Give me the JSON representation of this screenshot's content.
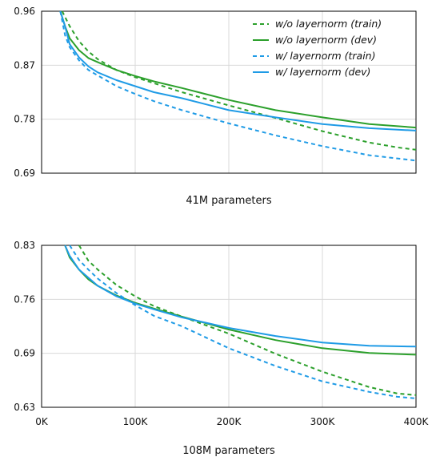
{
  "colors": {
    "green": "#2ca02c",
    "blue": "#1f9be6"
  },
  "legend": [
    {
      "label": "w/o layernorm (train)",
      "color_key": "green",
      "dashed": true
    },
    {
      "label": "w/o layernorm (dev)",
      "color_key": "green",
      "dashed": false
    },
    {
      "label": "w/ layernorm (train)",
      "color_key": "blue",
      "dashed": true
    },
    {
      "label": "w/ layernorm (dev)",
      "color_key": "blue",
      "dashed": false
    }
  ],
  "chart_data": [
    {
      "type": "line",
      "title": "41M parameters",
      "xlim": [
        0,
        400000
      ],
      "ylim": [
        0.69,
        0.96
      ],
      "yticks": [
        "0.96",
        "0.87",
        "0.78",
        "0.69"
      ],
      "grid": true,
      "legend_position": "top-right",
      "series": [
        {
          "name": "w/o layernorm (train)",
          "color_key": "green",
          "dashed": true,
          "x": [
            22000,
            30000,
            40000,
            50000,
            60000,
            80000,
            100000,
            120000,
            150000,
            200000,
            250000,
            300000,
            350000,
            380000,
            400000
          ],
          "y": [
            0.96,
            0.935,
            0.91,
            0.893,
            0.88,
            0.862,
            0.85,
            0.84,
            0.825,
            0.803,
            0.782,
            0.76,
            0.741,
            0.733,
            0.729
          ]
        },
        {
          "name": "w/o layernorm (dev)",
          "color_key": "green",
          "dashed": false,
          "x": [
            20000,
            25000,
            30000,
            40000,
            50000,
            60000,
            80000,
            100000,
            120000,
            150000,
            200000,
            250000,
            300000,
            350000,
            400000
          ],
          "y": [
            0.96,
            0.935,
            0.915,
            0.895,
            0.882,
            0.875,
            0.862,
            0.852,
            0.843,
            0.832,
            0.812,
            0.795,
            0.783,
            0.772,
            0.766
          ]
        },
        {
          "name": "w/ layernorm (train)",
          "color_key": "blue",
          "dashed": true,
          "x": [
            20000,
            25000,
            30000,
            40000,
            50000,
            60000,
            80000,
            100000,
            120000,
            150000,
            200000,
            250000,
            300000,
            350000,
            400000
          ],
          "y": [
            0.96,
            0.92,
            0.9,
            0.878,
            0.862,
            0.853,
            0.835,
            0.822,
            0.81,
            0.795,
            0.773,
            0.753,
            0.735,
            0.72,
            0.711
          ]
        },
        {
          "name": "w/ layernorm (dev)",
          "color_key": "blue",
          "dashed": false,
          "x": [
            20000,
            25000,
            30000,
            40000,
            50000,
            60000,
            80000,
            100000,
            120000,
            150000,
            200000,
            250000,
            300000,
            350000,
            400000
          ],
          "y": [
            0.96,
            0.935,
            0.905,
            0.883,
            0.868,
            0.858,
            0.845,
            0.835,
            0.825,
            0.815,
            0.795,
            0.783,
            0.772,
            0.765,
            0.761
          ]
        }
      ]
    },
    {
      "type": "line",
      "title": "108M parameters",
      "xlim": [
        0,
        400000
      ],
      "ylim": [
        0.63,
        0.83
      ],
      "xticks": [
        "0K",
        "100K",
        "200K",
        "300K",
        "400K"
      ],
      "yticks": [
        "0.83",
        "0.76",
        "0.69",
        "0.63"
      ],
      "grid": true,
      "series": [
        {
          "name": "w/o layernorm (train)",
          "color_key": "green",
          "dashed": true,
          "x": [
            40000,
            50000,
            60000,
            80000,
            100000,
            120000,
            150000,
            200000,
            250000,
            300000,
            350000,
            380000,
            400000
          ],
          "y": [
            0.83,
            0.811,
            0.8,
            0.781,
            0.767,
            0.755,
            0.742,
            0.721,
            0.696,
            0.674,
            0.655,
            0.647,
            0.645
          ]
        },
        {
          "name": "w/o layernorm (dev)",
          "color_key": "green",
          "dashed": false,
          "x": [
            25000,
            30000,
            40000,
            50000,
            60000,
            80000,
            100000,
            120000,
            150000,
            200000,
            250000,
            300000,
            350000,
            400000
          ],
          "y": [
            0.83,
            0.815,
            0.8,
            0.788,
            0.78,
            0.768,
            0.759,
            0.752,
            0.742,
            0.726,
            0.713,
            0.703,
            0.697,
            0.695
          ]
        },
        {
          "name": "w/ layernorm (train)",
          "color_key": "blue",
          "dashed": true,
          "x": [
            30000,
            40000,
            50000,
            60000,
            80000,
            100000,
            120000,
            150000,
            200000,
            250000,
            300000,
            350000,
            380000,
            400000
          ],
          "y": [
            0.83,
            0.812,
            0.8,
            0.789,
            0.771,
            0.756,
            0.743,
            0.73,
            0.703,
            0.681,
            0.662,
            0.649,
            0.643,
            0.641
          ]
        },
        {
          "name": "w/ layernorm (dev)",
          "color_key": "blue",
          "dashed": false,
          "x": [
            25000,
            30000,
            40000,
            50000,
            60000,
            80000,
            100000,
            120000,
            150000,
            200000,
            250000,
            300000,
            350000,
            400000
          ],
          "y": [
            0.83,
            0.817,
            0.8,
            0.79,
            0.78,
            0.767,
            0.758,
            0.751,
            0.741,
            0.728,
            0.718,
            0.71,
            0.706,
            0.705
          ]
        }
      ]
    }
  ]
}
